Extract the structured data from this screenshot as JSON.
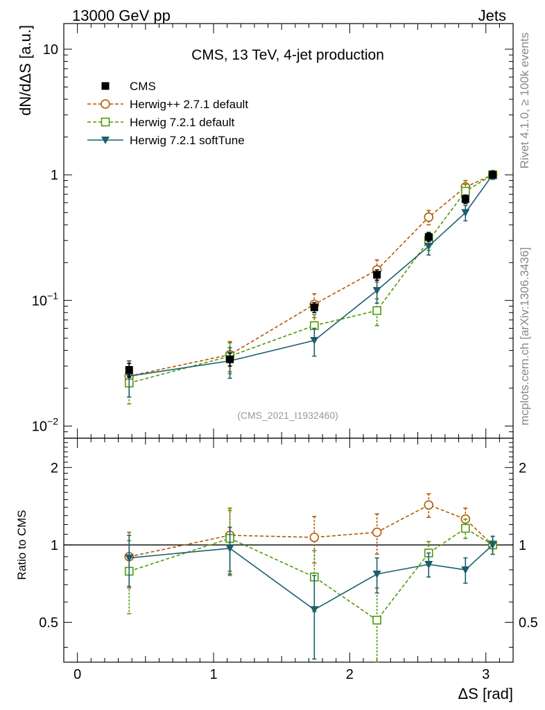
{
  "header": {
    "left_label": "13000 GeV pp",
    "right_label": "Jets"
  },
  "side_labels": {
    "rivet": "Rivet 4.1.0, ≥ 100k events",
    "mcplots": "mcplots.cern.ch [arXiv:1306.3436]"
  },
  "chart_data": [
    {
      "type": "line",
      "title": "CMS, 13 TeV, 4-jet production",
      "watermark": "(CMS_2021_I1932460)",
      "ylabel": "dN/dΔS [a.u.]",
      "yscale": "log",
      "ylim": [
        0.008,
        16
      ],
      "xlim": [
        -0.1,
        3.2
      ],
      "yticks": [
        {
          "value": 0.01,
          "base": "10",
          "exp": "−2"
        },
        {
          "value": 0.1,
          "base": "10",
          "exp": "−1"
        },
        {
          "value": 1,
          "base": "1",
          "exp": ""
        },
        {
          "value": 10,
          "base": "10",
          "exp": ""
        }
      ],
      "x": [
        0.38,
        1.12,
        1.74,
        2.2,
        2.58,
        2.85,
        3.05
      ],
      "series": [
        {
          "name": "CMS",
          "style": "data",
          "color": "#000000",
          "marker": "square-filled",
          "values": [
            0.028,
            0.034,
            0.088,
            0.16,
            0.32,
            0.64,
            1.0
          ],
          "err_up": [
            0.0035,
            0.004,
            0.008,
            0.015,
            0.025,
            0.05,
            0.05
          ],
          "err_down": [
            0.0035,
            0.004,
            0.008,
            0.015,
            0.025,
            0.05,
            0.05
          ]
        },
        {
          "name": "Herwig++ 2.7.1 default",
          "style": "dashed",
          "color": "#b35900",
          "marker": "circle-open",
          "values": [
            0.025,
            0.037,
            0.093,
            0.175,
            0.46,
            0.8,
            1.0
          ],
          "err_up": [
            0.008,
            0.01,
            0.02,
            0.035,
            0.06,
            0.1,
            0.08
          ],
          "err_down": [
            0.008,
            0.01,
            0.02,
            0.035,
            0.06,
            0.1,
            0.08
          ]
        },
        {
          "name": "Herwig 7.2.1 default",
          "style": "dashed",
          "color": "#4e9a06",
          "marker": "square-open",
          "values": [
            0.022,
            0.036,
            0.063,
            0.083,
            0.3,
            0.74,
            1.0
          ],
          "err_up": [
            0.007,
            0.01,
            0.014,
            0.02,
            0.05,
            0.1,
            0.08
          ],
          "err_down": [
            0.007,
            0.01,
            0.014,
            0.02,
            0.05,
            0.1,
            0.08
          ]
        },
        {
          "name": "Herwig 7.2.1 softTune",
          "style": "solid",
          "color": "#1b5e6e",
          "marker": "triangle-down-filled",
          "values": [
            0.025,
            0.033,
            0.048,
            0.12,
            0.27,
            0.5,
            1.0
          ],
          "err_up": [
            0.008,
            0.009,
            0.012,
            0.025,
            0.04,
            0.07,
            0.08
          ],
          "err_down": [
            0.008,
            0.009,
            0.012,
            0.025,
            0.04,
            0.07,
            0.08
          ]
        }
      ]
    },
    {
      "type": "line",
      "ylabel": "Ratio to CMS",
      "xlabel": "ΔS [rad]",
      "yscale": "log",
      "ylim": [
        0.35,
        2.6
      ],
      "xlim": [
        -0.1,
        3.2
      ],
      "yticks": [
        {
          "value": 0.5,
          "label": "0.5"
        },
        {
          "value": 1,
          "label": "1"
        },
        {
          "value": 2,
          "label": "2"
        }
      ],
      "xticks": [
        {
          "value": 0,
          "label": "0"
        },
        {
          "value": 1,
          "label": "1"
        },
        {
          "value": 2,
          "label": "2"
        },
        {
          "value": 3,
          "label": "3"
        }
      ],
      "reference_line": 1,
      "x": [
        0.38,
        1.12,
        1.74,
        2.2,
        2.58,
        2.85,
        3.05
      ],
      "series": [
        {
          "name": "Herwig++ 2.7.1 default",
          "style": "dashed",
          "color": "#b35900",
          "marker": "circle-open",
          "values": [
            0.9,
            1.09,
            1.07,
            1.12,
            1.43,
            1.26,
            1.0
          ],
          "err_up": [
            0.22,
            0.3,
            0.22,
            0.2,
            0.15,
            0.13,
            0.08
          ],
          "err_down": [
            0.22,
            0.3,
            0.22,
            0.2,
            0.15,
            0.13,
            0.08
          ]
        },
        {
          "name": "Herwig 7.2.1 default",
          "style": "dashed",
          "color": "#4e9a06",
          "marker": "square-open",
          "values": [
            0.79,
            1.06,
            0.75,
            0.51,
            0.93,
            1.16,
            1.0
          ],
          "err_up": [
            0.25,
            0.3,
            0.2,
            0.17,
            0.1,
            0.1,
            0.08
          ],
          "err_down": [
            0.25,
            0.3,
            0.2,
            0.3,
            0.1,
            0.1,
            0.08
          ]
        },
        {
          "name": "Herwig 7.2.1 softTune",
          "style": "solid",
          "color": "#1b5e6e",
          "marker": "triangle-down-filled",
          "values": [
            0.89,
            0.97,
            0.56,
            0.77,
            0.84,
            0.8,
            1.0
          ],
          "err_up": [
            0.2,
            0.2,
            0.2,
            0.12,
            0.09,
            0.09,
            0.08
          ],
          "err_down": [
            0.2,
            0.2,
            0.2,
            0.12,
            0.09,
            0.09,
            0.08
          ]
        }
      ]
    }
  ]
}
